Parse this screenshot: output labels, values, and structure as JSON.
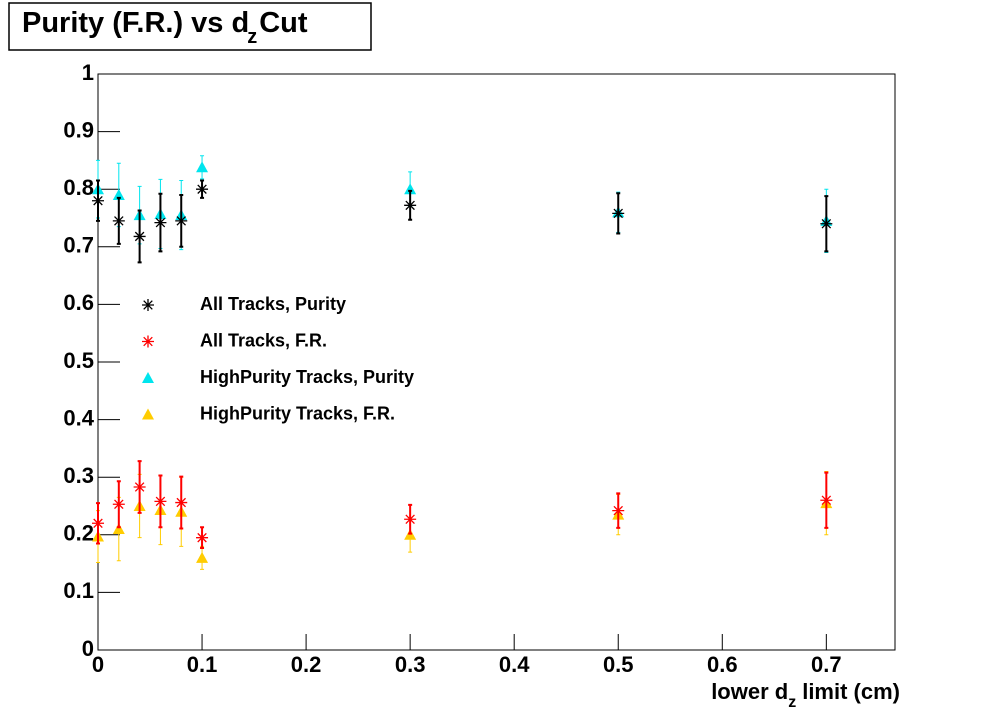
{
  "chart_data": {
    "type": "scatter",
    "title": {
      "text": "Purity (F.R.) vs d",
      "subscript": "z",
      "suffix": "Cut"
    },
    "xlabel": {
      "text": "lower d",
      "subscript": "z",
      "suffix": "limit (cm)"
    },
    "xlim": [
      0,
      0.766
    ],
    "ylim": [
      0,
      1
    ],
    "xticks": [
      0,
      0.1,
      0.2,
      0.3,
      0.4,
      0.5,
      0.6,
      0.7
    ],
    "yticks": [
      0,
      0.1,
      0.2,
      0.3,
      0.4,
      0.5,
      0.6,
      0.7,
      0.8,
      0.9,
      1
    ],
    "x": [
      0,
      0.02,
      0.04,
      0.06,
      0.08,
      0.1,
      0.3,
      0.5,
      0.7
    ],
    "series": [
      {
        "name": "All Tracks, Purity",
        "color": "#000000",
        "marker": "star",
        "values": [
          0.78,
          0.745,
          0.718,
          0.742,
          0.745,
          0.8,
          0.772,
          0.758,
          0.74
        ],
        "errors": [
          0.035,
          0.04,
          0.045,
          0.05,
          0.045,
          0.015,
          0.025,
          0.035,
          0.048
        ]
      },
      {
        "name": "All Tracks, F.R.",
        "color": "#ff0000",
        "marker": "star",
        "values": [
          0.22,
          0.253,
          0.283,
          0.258,
          0.256,
          0.195,
          0.227,
          0.242,
          0.26
        ],
        "errors": [
          0.035,
          0.04,
          0.045,
          0.045,
          0.045,
          0.018,
          0.025,
          0.03,
          0.048
        ]
      },
      {
        "name": "HighPurity Tracks, Purity",
        "color": "#00e5ee",
        "marker": "triangle",
        "values": [
          0.8,
          0.79,
          0.755,
          0.757,
          0.755,
          0.838,
          0.8,
          0.76,
          0.745
        ],
        "errors": [
          0.05,
          0.055,
          0.05,
          0.06,
          0.06,
          0.02,
          0.03,
          0.035,
          0.055
        ]
      },
      {
        "name": "HighPurity Tracks, F.R.",
        "color": "#ffcc00",
        "marker": "triangle",
        "values": [
          0.197,
          0.21,
          0.25,
          0.243,
          0.24,
          0.16,
          0.2,
          0.235,
          0.255
        ],
        "errors": [
          0.045,
          0.055,
          0.055,
          0.06,
          0.06,
          0.02,
          0.03,
          0.035,
          0.055
        ]
      }
    ]
  }
}
